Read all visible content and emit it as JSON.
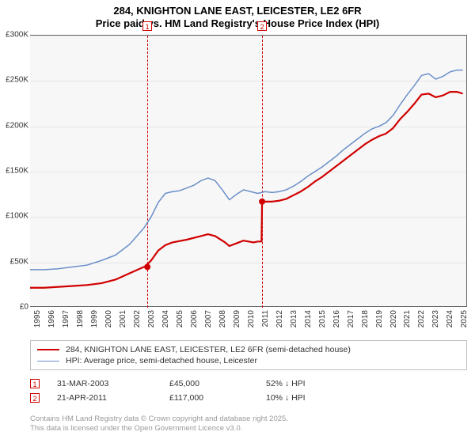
{
  "title": {
    "line1": "284, KNIGHTON LANE EAST, LEICESTER, LE2 6FR",
    "line2": "Price paid vs. HM Land Registry's House Price Index (HPI)"
  },
  "chart": {
    "type": "line",
    "background_color": "#f7f7f7",
    "grid_color": "#e5e5e5",
    "axis_color": "#666666",
    "xlim": [
      1995,
      2025.7
    ],
    "ylim": [
      0,
      300000
    ],
    "ytick_step": 50000,
    "yticks": [
      "£0",
      "£50K",
      "£100K",
      "£150K",
      "£200K",
      "£250K",
      "£300K"
    ],
    "xticks": [
      1995,
      1996,
      1997,
      1998,
      1999,
      2000,
      2001,
      2002,
      2003,
      2004,
      2005,
      2006,
      2007,
      2008,
      2009,
      2010,
      2011,
      2012,
      2013,
      2014,
      2015,
      2016,
      2017,
      2018,
      2019,
      2020,
      2021,
      2022,
      2023,
      2024,
      2025
    ],
    "series": [
      {
        "name": "property",
        "label": "284, KNIGHTON LANE EAST, LEICESTER, LE2 6FR (semi-detached house)",
        "color": "#d00000",
        "line_width": 2.2,
        "data": [
          [
            1995,
            22000
          ],
          [
            1996,
            22000
          ],
          [
            1997,
            23000
          ],
          [
            1998,
            24000
          ],
          [
            1999,
            25000
          ],
          [
            2000,
            27000
          ],
          [
            2001,
            31000
          ],
          [
            2002,
            38000
          ],
          [
            2003,
            45000
          ],
          [
            2003.05,
            45000
          ],
          [
            2003.5,
            52000
          ],
          [
            2004,
            63000
          ],
          [
            2004.5,
            69000
          ],
          [
            2005,
            72000
          ],
          [
            2006,
            75000
          ],
          [
            2007,
            79000
          ],
          [
            2007.5,
            81000
          ],
          [
            2008,
            79000
          ],
          [
            2008.7,
            72000
          ],
          [
            2009,
            68000
          ],
          [
            2009.5,
            71000
          ],
          [
            2010,
            74000
          ],
          [
            2010.7,
            72000
          ],
          [
            2011,
            73000
          ],
          [
            2011.26,
            73000
          ],
          [
            2011.3,
            117000
          ],
          [
            2011.5,
            117000
          ],
          [
            2012,
            117000
          ],
          [
            2012.5,
            118000
          ],
          [
            2013,
            120000
          ],
          [
            2013.5,
            124000
          ],
          [
            2014,
            128000
          ],
          [
            2014.5,
            133000
          ],
          [
            2015,
            139000
          ],
          [
            2015.5,
            144000
          ],
          [
            2016,
            150000
          ],
          [
            2016.5,
            156000
          ],
          [
            2017,
            162000
          ],
          [
            2017.5,
            168000
          ],
          [
            2018,
            174000
          ],
          [
            2018.5,
            180000
          ],
          [
            2019,
            185000
          ],
          [
            2019.5,
            189000
          ],
          [
            2020,
            192000
          ],
          [
            2020.5,
            198000
          ],
          [
            2021,
            208000
          ],
          [
            2021.5,
            216000
          ],
          [
            2022,
            225000
          ],
          [
            2022.5,
            235000
          ],
          [
            2023,
            236000
          ],
          [
            2023.5,
            232000
          ],
          [
            2024,
            234000
          ],
          [
            2024.5,
            238000
          ],
          [
            2025,
            238000
          ],
          [
            2025.4,
            236000
          ]
        ]
      },
      {
        "name": "hpi",
        "label": "HPI: Average price, semi-detached house, Leicester",
        "color": "#6b8fc9",
        "line_width": 1.5,
        "data": [
          [
            1995,
            42000
          ],
          [
            1996,
            42000
          ],
          [
            1997,
            43000
          ],
          [
            1998,
            45000
          ],
          [
            1999,
            47000
          ],
          [
            2000,
            52000
          ],
          [
            2001,
            58000
          ],
          [
            2002,
            70000
          ],
          [
            2003,
            88000
          ],
          [
            2003.5,
            100000
          ],
          [
            2004,
            116000
          ],
          [
            2004.5,
            126000
          ],
          [
            2005,
            128000
          ],
          [
            2005.5,
            129000
          ],
          [
            2006,
            132000
          ],
          [
            2006.5,
            135000
          ],
          [
            2007,
            140000
          ],
          [
            2007.5,
            143000
          ],
          [
            2008,
            140000
          ],
          [
            2008.5,
            130000
          ],
          [
            2009,
            119000
          ],
          [
            2009.5,
            125000
          ],
          [
            2010,
            130000
          ],
          [
            2010.5,
            128000
          ],
          [
            2011,
            126000
          ],
          [
            2011.5,
            128000
          ],
          [
            2012,
            127000
          ],
          [
            2012.5,
            128000
          ],
          [
            2013,
            130000
          ],
          [
            2013.5,
            134000
          ],
          [
            2014,
            139000
          ],
          [
            2014.5,
            145000
          ],
          [
            2015,
            150000
          ],
          [
            2015.5,
            155000
          ],
          [
            2016,
            161000
          ],
          [
            2016.5,
            167000
          ],
          [
            2017,
            174000
          ],
          [
            2017.5,
            180000
          ],
          [
            2018,
            186000
          ],
          [
            2018.5,
            192000
          ],
          [
            2019,
            197000
          ],
          [
            2019.5,
            200000
          ],
          [
            2020,
            204000
          ],
          [
            2020.5,
            212000
          ],
          [
            2021,
            224000
          ],
          [
            2021.5,
            235000
          ],
          [
            2022,
            245000
          ],
          [
            2022.5,
            256000
          ],
          [
            2023,
            258000
          ],
          [
            2023.5,
            252000
          ],
          [
            2024,
            255000
          ],
          [
            2024.5,
            260000
          ],
          [
            2025,
            262000
          ],
          [
            2025.4,
            262000
          ]
        ]
      }
    ],
    "sale_markers": [
      {
        "n": "1",
        "x": 2003.24,
        "date": "31-MAR-2003",
        "price": "£45,000",
        "delta": "52% ↓ HPI",
        "dot_y": 45000
      },
      {
        "n": "2",
        "x": 2011.3,
        "date": "21-APR-2011",
        "price": "£117,000",
        "delta": "10% ↓ HPI",
        "dot_y": 117000
      }
    ],
    "label_fontsize": 10,
    "title_fontsize": 13
  },
  "footer": {
    "l1": "Contains HM Land Registry data © Crown copyright and database right 2025.",
    "l2": "This data is licensed under the Open Government Licence v3.0."
  }
}
